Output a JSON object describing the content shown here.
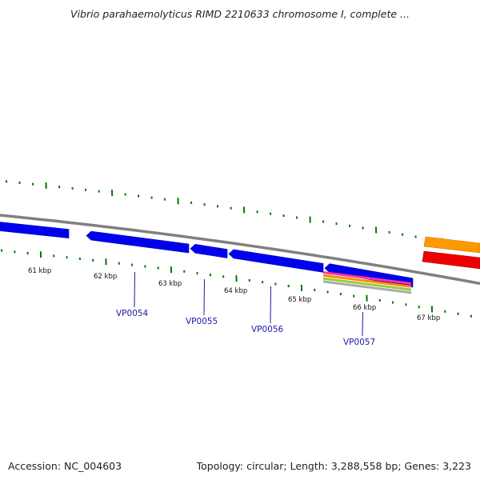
{
  "title": "Vibrio parahaemolyticus RIMD 2210633 chromosome I, complete ...",
  "footer": {
    "accession": "Accession: NC_004603",
    "stats": "Topology: circular; Length: 3,288,558 bp; Genes: 3,223"
  },
  "colors": {
    "gene_forward": "#0000ee",
    "backbone": "#808080",
    "tick": "#007700",
    "feature_orange": "#ff9900",
    "feature_red": "#ee0000",
    "gene_label": "#1a1aa8"
  },
  "scale": {
    "unit": "kbp",
    "labels": [
      {
        "text": "61 kbp",
        "kb": 61
      },
      {
        "text": "62 kbp",
        "kb": 62
      },
      {
        "text": "63 kbp",
        "kb": 63
      },
      {
        "text": "64 kbp",
        "kb": 64
      },
      {
        "text": "65 kbp",
        "kb": 65
      },
      {
        "text": "66 kbp",
        "kb": 66
      },
      {
        "text": "67 kbp",
        "kb": 67
      }
    ]
  },
  "genes": [
    {
      "name": "VP0054"
    },
    {
      "name": "VP0055"
    },
    {
      "name": "VP0056"
    },
    {
      "name": "VP0057"
    }
  ]
}
